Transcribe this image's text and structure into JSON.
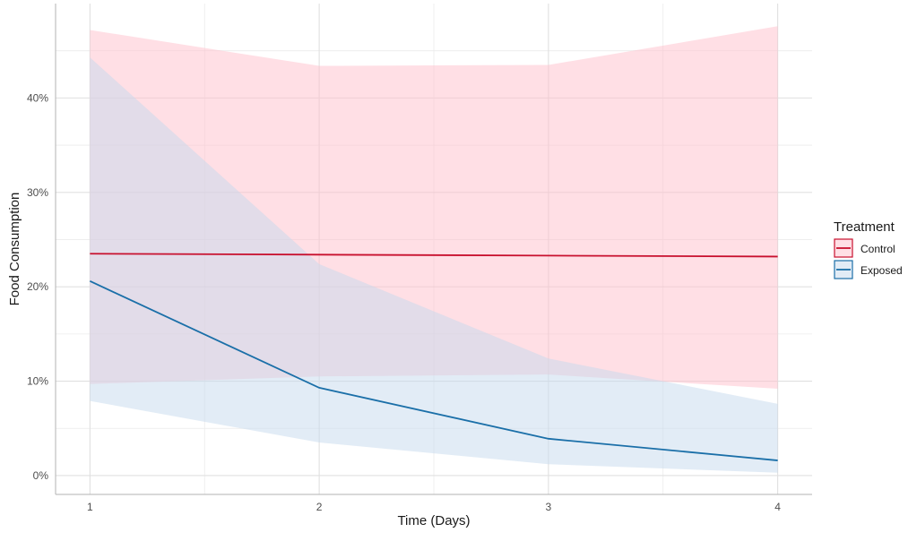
{
  "chart_data": {
    "type": "line",
    "xlabel": "Time (Days)",
    "ylabel": "Food Consumption",
    "x": [
      1,
      2,
      3,
      4
    ],
    "x_ticks": [
      "1",
      "2",
      "3",
      "4"
    ],
    "y_ticks": [
      "0%",
      "10%",
      "20%",
      "30%",
      "40%"
    ],
    "xlim": [
      0.85,
      4.15
    ],
    "ylim": [
      -0.02,
      0.5
    ],
    "grid": true,
    "legend_position": "right",
    "legend_title": "Treatment",
    "series": [
      {
        "name": "Control",
        "values": [
          0.235,
          0.234,
          0.233,
          0.232
        ],
        "lower": [
          0.097,
          0.105,
          0.107,
          0.092
        ],
        "upper": [
          0.472,
          0.434,
          0.435,
          0.476
        ],
        "line_color": "#c8102e",
        "fill_color": "#ffc0cb"
      },
      {
        "name": "Exposed",
        "values": [
          0.206,
          0.093,
          0.039,
          0.016
        ],
        "lower": [
          0.079,
          0.035,
          0.012,
          0.003
        ],
        "upper": [
          0.443,
          0.224,
          0.124,
          0.076
        ],
        "line_color": "#1a6fa8",
        "fill_color": "#c6d9ee"
      }
    ]
  }
}
